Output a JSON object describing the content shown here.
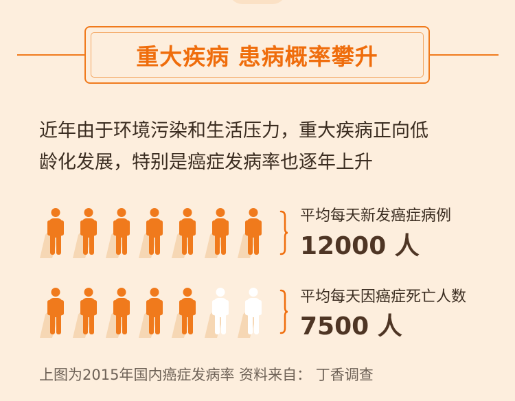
{
  "title": "重大疾病 患病概率攀升",
  "intro_line1": "近年由于环境污染和生活压力，重大疾病正向低",
  "intro_line2": "龄化发展，特别是癌症发病率也逐年上升",
  "stats": [
    {
      "label": "平均每天新发癌症病例",
      "value": "12000 人",
      "filled": 7,
      "total": 7
    },
    {
      "label": "平均每天因癌症死亡人数",
      "value": "7500 人",
      "filled": 5,
      "total": 7
    }
  ],
  "footer": "上图为2015年国内癌症发病率  资料来自：  丁香调查",
  "colors": {
    "accent": "#ef6d0c",
    "figure_filled": "#f07a1c",
    "figure_empty": "#ffffff",
    "background": "#fdeedd"
  },
  "icons": [
    "person-icon",
    "brace-icon"
  ]
}
